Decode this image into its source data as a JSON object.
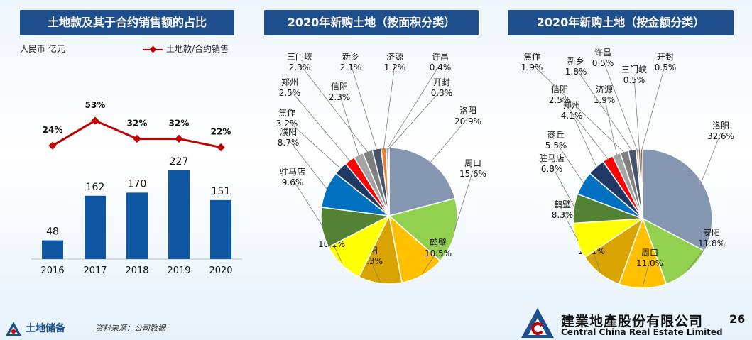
{
  "titles": {
    "left": "土地款及其于合约销售额的占比",
    "middle": "2020年新购土地（按面积分类）",
    "right": "2020年新购土地（按金额分类）"
  },
  "unit": "人民币 亿元",
  "legend_label": "土地款/合约销售",
  "footer": {
    "section": "土地储备",
    "source": "资料来源：公司数据",
    "company_cn": "建業地產股份有限公司",
    "company_en": "Central China Real Estate Limited",
    "page": "26"
  },
  "chart_data": [
    {
      "type": "bar",
      "categories": [
        "2016",
        "2017",
        "2018",
        "2019",
        "2020"
      ],
      "values": [
        48,
        162,
        170,
        227,
        151
      ],
      "bar_color": "#0f56a3",
      "line": {
        "name": "土地款/合约销售",
        "values": [
          24,
          53,
          32,
          32,
          22
        ],
        "labels": [
          "24%",
          "53%",
          "32%",
          "32%",
          "22%"
        ],
        "color": "#c00000"
      }
    },
    {
      "type": "pie",
      "slices": [
        {
          "label": "洛阳",
          "value": 20.9,
          "text": "20.9%",
          "color": "#8496b0"
        },
        {
          "label": "周口",
          "value": 15.6,
          "text": "15.6%",
          "color": "#92d050"
        },
        {
          "label": "鹤壁",
          "value": 10.5,
          "text": "10.5%",
          "color": "#ffc000"
        },
        {
          "label": "安阳",
          "value": 10.3,
          "text": "10.3%",
          "color": "#d9a400"
        },
        {
          "label": "商丘",
          "value": 10.1,
          "text": "10.1%",
          "color": "#ffff00"
        },
        {
          "label": "驻马店",
          "value": 9.6,
          "text": "9.6%",
          "color": "#548235"
        },
        {
          "label": "濮阳",
          "value": 8.7,
          "text": "8.7%",
          "color": "#0070c0"
        },
        {
          "label": "焦作",
          "value": 3.2,
          "text": "3.2%",
          "color": "#1f3864"
        },
        {
          "label": "郑州",
          "value": 2.5,
          "text": "2.5%",
          "color": "#ff0000"
        },
        {
          "label": "信阳",
          "value": 2.3,
          "text": "2.3%",
          "color": "#a5a5a5"
        },
        {
          "label": "三门峡",
          "value": 2.3,
          "text": "2.3%",
          "color": "#7f7f7f"
        },
        {
          "label": "新乡",
          "value": 2.1,
          "text": "2.1%",
          "color": "#44546a"
        },
        {
          "label": "济源",
          "value": 1.2,
          "text": "1.2%",
          "color": "#ed7d31"
        },
        {
          "label": "许昌",
          "value": 0.4,
          "text": "0.4%",
          "color": "#2e75b6"
        },
        {
          "label": "开封",
          "value": 0.3,
          "text": "0.3%",
          "color": "#c55a11"
        }
      ]
    },
    {
      "type": "pie",
      "slices": [
        {
          "label": "洛阳",
          "value": 32.6,
          "text": "32.6%",
          "color": "#8496b0"
        },
        {
          "label": "安阳",
          "value": 11.8,
          "text": "11.8%",
          "color": "#92d050"
        },
        {
          "label": "周口",
          "value": 11.0,
          "text": "11.0%",
          "color": "#ffc000"
        },
        {
          "label": "濮阳",
          "value": 10.1,
          "text": "10.1%",
          "color": "#d9a400"
        },
        {
          "label": "鹤壁",
          "value": 8.3,
          "text": "8.3%",
          "color": "#ffff00"
        },
        {
          "label": "驻马店",
          "value": 6.8,
          "text": "6.8%",
          "color": "#548235"
        },
        {
          "label": "商丘",
          "value": 5.5,
          "text": "5.5%",
          "color": "#0070c0"
        },
        {
          "label": "郑州",
          "value": 4.1,
          "text": "4.1%",
          "color": "#1f3864"
        },
        {
          "label": "信阳",
          "value": 2.5,
          "text": "2.5%",
          "color": "#ff0000"
        },
        {
          "label": "济源",
          "value": 1.9,
          "text": "1.9%",
          "color": "#a5a5a5"
        },
        {
          "label": "焦作",
          "value": 1.9,
          "text": "1.9%",
          "color": "#7f7f7f"
        },
        {
          "label": "新乡",
          "value": 1.8,
          "text": "1.8%",
          "color": "#44546a"
        },
        {
          "label": "许昌",
          "value": 0.5,
          "text": "0.5%",
          "color": "#ed7d31"
        },
        {
          "label": "三门峡",
          "value": 0.5,
          "text": "0.5%",
          "color": "#2e75b6"
        },
        {
          "label": "开封",
          "value": 0.5,
          "text": "0.5%",
          "color": "#c55a11"
        }
      ]
    }
  ]
}
